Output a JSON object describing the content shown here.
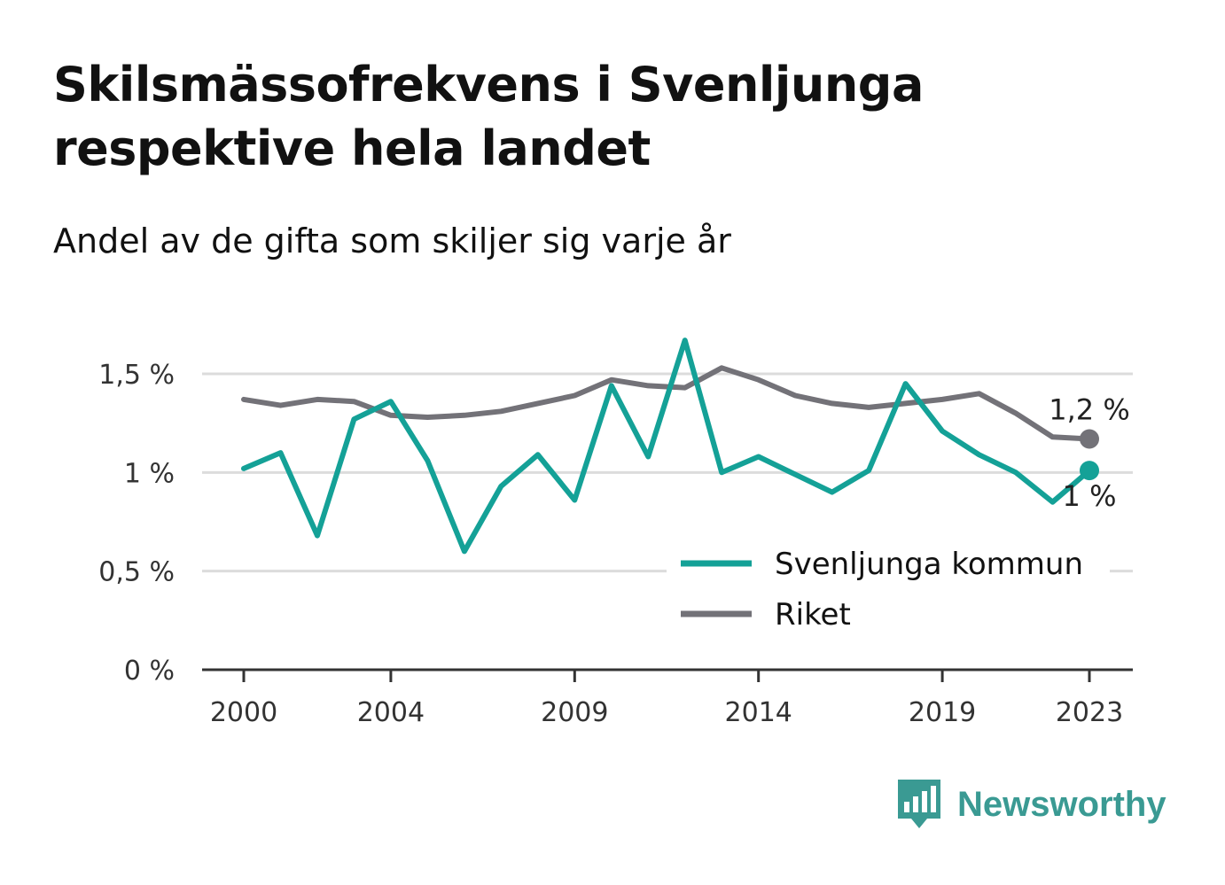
{
  "title": "Skilsmässofrekvens i Svenljunga respektive hela landet",
  "subtitle": "Andel av de gifta som skiljer sig varje år",
  "brand": {
    "name": "Newsworthy",
    "icon": "bar-chart-speech-bubble-icon",
    "color": "#3a9a93"
  },
  "chart_data": {
    "type": "line",
    "x": [
      2000,
      2001,
      2002,
      2003,
      2004,
      2005,
      2006,
      2007,
      2008,
      2009,
      2010,
      2011,
      2012,
      2013,
      2014,
      2015,
      2016,
      2017,
      2018,
      2019,
      2020,
      2021,
      2022,
      2023
    ],
    "xticks": [
      2000,
      2004,
      2009,
      2014,
      2019,
      2023
    ],
    "xlim": [
      2000,
      2023
    ],
    "yticks": [
      0,
      0.5,
      1,
      1.5
    ],
    "ytick_labels": [
      "0 %",
      "0,5 %",
      "1 %",
      "1,5 %"
    ],
    "ylim": [
      0,
      1.7
    ],
    "grid": true,
    "legend_position": "bottom-right",
    "series": [
      {
        "name": "Svenljunga kommun",
        "color": "#14a197",
        "values": [
          1.02,
          1.1,
          0.68,
          1.27,
          1.36,
          1.06,
          0.6,
          0.93,
          1.09,
          0.86,
          1.44,
          1.08,
          1.67,
          1.0,
          1.08,
          0.99,
          0.9,
          1.01,
          1.45,
          1.21,
          1.09,
          1.0,
          0.85,
          1.01
        ],
        "end_label": "1 %"
      },
      {
        "name": "Riket",
        "color": "#737278",
        "values": [
          1.37,
          1.34,
          1.37,
          1.36,
          1.29,
          1.28,
          1.29,
          1.31,
          1.35,
          1.39,
          1.47,
          1.44,
          1.43,
          1.53,
          1.47,
          1.39,
          1.35,
          1.33,
          1.35,
          1.37,
          1.4,
          1.3,
          1.18,
          1.17
        ],
        "end_label": "1,2 %"
      }
    ]
  }
}
